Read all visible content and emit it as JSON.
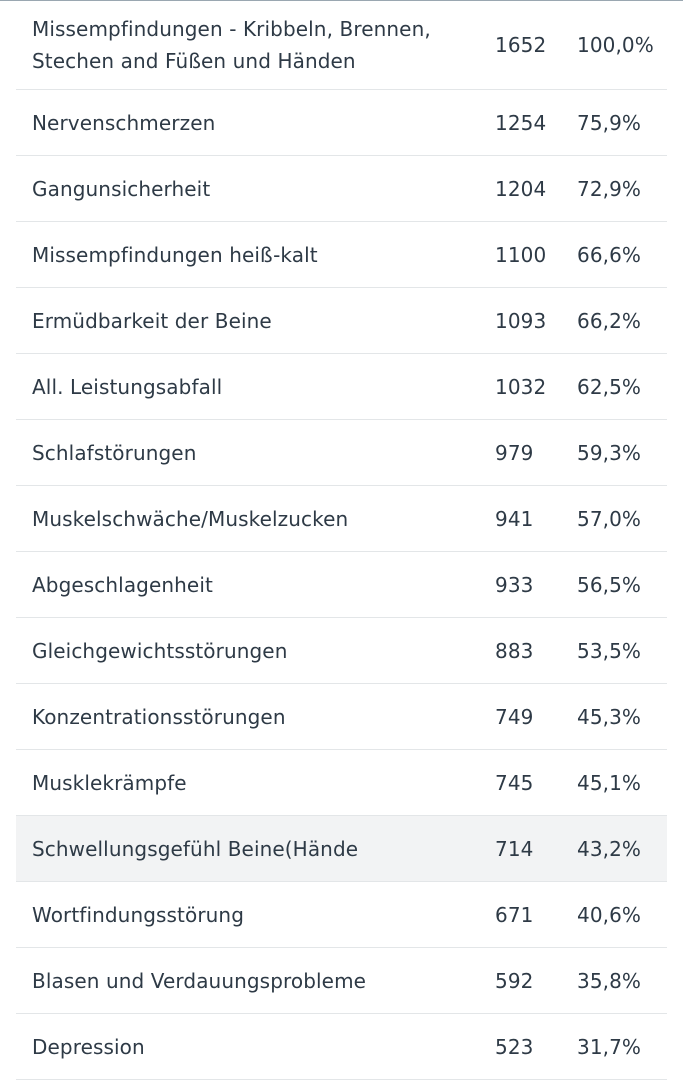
{
  "table": {
    "rows": [
      {
        "name": "Missempfindungen - Kribbeln, Brennen, Stechen and Füßen und Händen",
        "count": "1652",
        "percent": "100,0%"
      },
      {
        "name": "Nervenschmerzen",
        "count": "1254",
        "percent": "75,9%"
      },
      {
        "name": "Gangunsicherheit",
        "count": "1204",
        "percent": "72,9%"
      },
      {
        "name": "Missempfindungen heiß-kalt",
        "count": "1100",
        "percent": "66,6%"
      },
      {
        "name": "Ermüdbarkeit der Beine",
        "count": "1093",
        "percent": "66,2%"
      },
      {
        "name": "All. Leistungsabfall",
        "count": "1032",
        "percent": "62,5%"
      },
      {
        "name": "Schlafstörungen",
        "count": "979",
        "percent": "59,3%"
      },
      {
        "name": "Muskelschwäche/Muskelzucken",
        "count": "941",
        "percent": "57,0%"
      },
      {
        "name": "Abgeschlagenheit",
        "count": "933",
        "percent": "56,5%"
      },
      {
        "name": "Gleichgewichtsstörungen",
        "count": "883",
        "percent": "53,5%"
      },
      {
        "name": "Konzentrationsstörungen",
        "count": "749",
        "percent": "45,3%"
      },
      {
        "name": "Musklekrämpfe",
        "count": "745",
        "percent": "45,1%"
      },
      {
        "name": "Schwellungsgefühl Beine(Hände",
        "count": "714",
        "percent": "43,2%"
      },
      {
        "name": "Wortfindungsstörung",
        "count": "671",
        "percent": "40,6%"
      },
      {
        "name": "Blasen und Verdauungsprobleme",
        "count": "592",
        "percent": "35,8%"
      },
      {
        "name": "Depression",
        "count": "523",
        "percent": "31,7%"
      }
    ]
  }
}
